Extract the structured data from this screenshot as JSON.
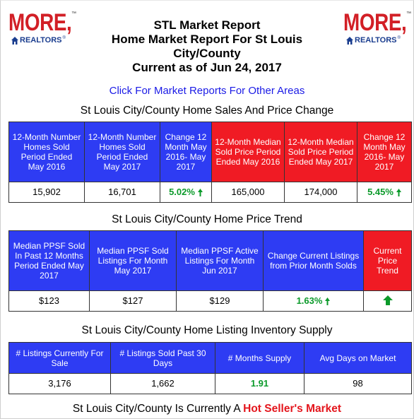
{
  "logo": {
    "text": "MORE",
    "tm": "™",
    "sub": "REALTORS",
    "reg": "®"
  },
  "header": {
    "line1": "STL Market Report",
    "line2": "Home Market Report For St Louis",
    "line3": "City/County",
    "line4": "Current as of Jun 24, 2017"
  },
  "link_text": "Click For Market Reports For Other Areas",
  "sales": {
    "title": "St Louis City/County Home Sales And Price Change",
    "headers": [
      "12-Month Number Homes Sold Period Ended May 2016",
      "12-Month Number Homes Sold Period Ended May 2017",
      "Change 12 Month May 2016- May 2017",
      "12-Month Median Sold Price Period Ended May 2016",
      "12-Month Median Sold Price Period Ended May 2017",
      "Change 12 Month May 2016- May 2017"
    ],
    "values": [
      "15,902",
      "16,701",
      "5.02%",
      "165,000",
      "174,000",
      "5.45%"
    ]
  },
  "trend": {
    "title": "St Louis City/County Home Price Trend",
    "headers": [
      "Median PPSF Sold In Past 12 Months Period Ended May 2017",
      "Median PPSF Sold Listings For Month May 2017",
      "Median PPSF Active Listings For Month Jun 2017",
      "Change Current Listings from Prior Month Solds",
      "Current Price Trend"
    ],
    "values": [
      "$123",
      "$127",
      "$129",
      "1.63%"
    ]
  },
  "inventory": {
    "title": "St Louis City/County Home Listing Inventory Supply",
    "headers": [
      "# Listings Currently For Sale",
      "# Listings Sold Past 30 Days",
      "# Months Supply",
      "Avg Days on Market"
    ],
    "values": [
      "3,176",
      "1,662",
      "1.91",
      "98"
    ]
  },
  "bottom": {
    "prefix": "St Louis City/County Is Currently A ",
    "highlight": "Hot Seller's Market"
  },
  "colors": {
    "blue": "#2e3cf3",
    "red": "#f01b24",
    "green": "#0b9a2a",
    "link": "#1a1ae6",
    "logo_red": "#d21f26",
    "logo_blue": "#1a3d8f"
  },
  "icons": [
    "house-icon",
    "up-arrow-icon"
  ]
}
